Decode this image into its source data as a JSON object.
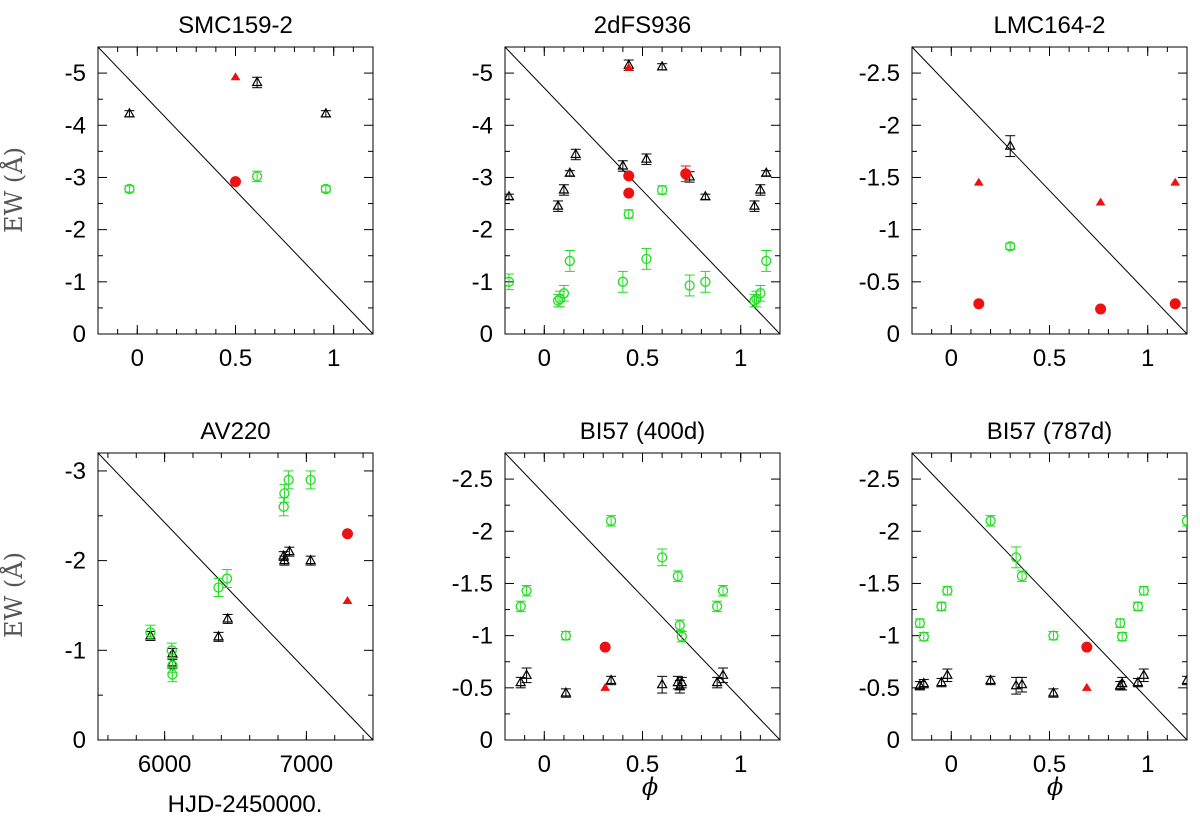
{
  "figure": {
    "ylabel": "EW (Å)",
    "xlabel_left": "HJD-2450000.",
    "xlabel_phase": "ϕ"
  },
  "colors": {
    "frame": "#000000",
    "black_series": "#000000",
    "green_series": "#22dd22",
    "red_series": "#ee1111"
  },
  "chart_data": [
    {
      "type": "scatter",
      "title": "SMC159-2",
      "xlabel": "",
      "ylabel": "EW (Å)",
      "xlim": [
        -0.2,
        1.2
      ],
      "ylim": [
        0,
        -5.5
      ],
      "xticks": [
        0,
        0.5,
        1
      ],
      "xticklabels": [
        "0",
        "0.5",
        "1"
      ],
      "yticks": [
        0,
        -1,
        -2,
        -3,
        -4,
        -5
      ],
      "yticklabels": [
        "0",
        "-1",
        "-2",
        "-3",
        "-4",
        "-5"
      ],
      "line": [
        [
          -0.2,
          -5.5
        ],
        [
          1.2,
          0
        ]
      ],
      "series": [
        {
          "marker": "triangle",
          "color": "#000000",
          "points": [
            [
              -0.04,
              -4.22,
              0.06
            ],
            [
              0.61,
              -4.82,
              0.1
            ],
            [
              0.96,
              -4.22,
              0.06
            ]
          ]
        },
        {
          "marker": "circle",
          "color": "#22dd22",
          "points": [
            [
              -0.04,
              -2.78,
              0.06
            ],
            [
              0.61,
              -3.02,
              0.1
            ],
            [
              0.96,
              -2.78,
              0.06
            ]
          ]
        },
        {
          "marker": "filled-triangle",
          "color": "#ee1111",
          "points": [
            [
              0.5,
              -4.92,
              0
            ]
          ]
        },
        {
          "marker": "filled-circle",
          "color": "#ee1111",
          "points": [
            [
              0.5,
              -2.92,
              0
            ]
          ]
        }
      ]
    },
    {
      "type": "scatter",
      "title": "2dFS936",
      "xlabel": "",
      "ylabel": "",
      "xlim": [
        -0.2,
        1.2
      ],
      "ylim": [
        0,
        -5.5
      ],
      "xticks": [
        0,
        0.5,
        1
      ],
      "xticklabels": [
        "0",
        "0.5",
        "1"
      ],
      "yticks": [
        0,
        -1,
        -2,
        -3,
        -4,
        -5
      ],
      "yticklabels": [
        "0",
        "-1",
        "-2",
        "-3",
        "-4",
        "-5"
      ],
      "line": [
        [
          -0.2,
          -5.5
        ],
        [
          1.2,
          0
        ]
      ],
      "series": [
        {
          "marker": "triangle",
          "color": "#000000",
          "points": [
            [
              -0.18,
              -2.63,
              0.05
            ],
            [
              0.07,
              -2.45,
              0.1
            ],
            [
              0.1,
              -2.76,
              0.1
            ],
            [
              0.13,
              -3.08,
              0.05
            ],
            [
              0.16,
              -3.44,
              0.1
            ],
            [
              0.4,
              -3.22,
              0.1
            ],
            [
              0.43,
              -5.15,
              0.1
            ],
            [
              0.52,
              -3.35,
              0.1
            ],
            [
              0.6,
              -5.12,
              0.06
            ],
            [
              0.74,
              -3.01,
              0.1
            ],
            [
              0.82,
              -2.63,
              0.05
            ],
            [
              1.07,
              -2.45,
              0.1
            ],
            [
              1.1,
              -2.76,
              0.1
            ],
            [
              1.13,
              -3.08,
              0.05
            ]
          ]
        },
        {
          "marker": "circle",
          "color": "#22dd22",
          "points": [
            [
              -0.18,
              -1.0,
              0.15
            ],
            [
              0.07,
              -0.64,
              0.12
            ],
            [
              0.08,
              -0.67,
              0.15
            ],
            [
              0.1,
              -0.78,
              0.15
            ],
            [
              0.13,
              -1.4,
              0.2
            ],
            [
              0.4,
              -1.0,
              0.2
            ],
            [
              0.43,
              -2.3,
              0.08
            ],
            [
              0.52,
              -1.44,
              0.2
            ],
            [
              0.6,
              -2.76,
              0.08
            ],
            [
              0.74,
              -0.93,
              0.2
            ],
            [
              0.82,
              -1.0,
              0.2
            ],
            [
              1.07,
              -0.64,
              0.12
            ],
            [
              1.08,
              -0.67,
              0.15
            ],
            [
              1.1,
              -0.78,
              0.15
            ],
            [
              1.13,
              -1.4,
              0.2
            ]
          ]
        },
        {
          "marker": "filled-triangle",
          "color": "#ee1111",
          "points": [
            [
              0.43,
              -5.1,
              0
            ]
          ]
        },
        {
          "marker": "filled-circle",
          "color": "#ee1111",
          "points": [
            [
              0.43,
              -3.03,
              0
            ],
            [
              0.43,
              -2.7,
              0
            ],
            [
              0.72,
              -3.07,
              0.15
            ]
          ]
        }
      ]
    },
    {
      "type": "scatter",
      "title": "LMC164-2",
      "xlabel": "",
      "ylabel": "",
      "xlim": [
        -0.2,
        1.2
      ],
      "ylim": [
        0,
        -2.75
      ],
      "xticks": [
        0,
        0.5,
        1
      ],
      "xticklabels": [
        "0",
        "0.5",
        "1"
      ],
      "yticks": [
        0,
        -0.5,
        -1,
        -1.5,
        -2,
        -2.5
      ],
      "yticklabels": [
        "0",
        "-0.5",
        "-1",
        "-1.5",
        "-2",
        "-2.5"
      ],
      "line": [
        [
          -0.2,
          -2.75
        ],
        [
          1.2,
          0
        ]
      ],
      "series": [
        {
          "marker": "triangle",
          "color": "#000000",
          "points": [
            [
              0.3,
              -1.8,
              0.1
            ]
          ]
        },
        {
          "marker": "circle",
          "color": "#22dd22",
          "points": [
            [
              0.3,
              -0.84,
              0.03
            ]
          ]
        },
        {
          "marker": "filled-triangle",
          "color": "#ee1111",
          "points": [
            [
              0.14,
              -1.45,
              0
            ],
            [
              0.76,
              -1.26,
              0
            ],
            [
              1.14,
              -1.45,
              0
            ]
          ]
        },
        {
          "marker": "filled-circle",
          "color": "#ee1111",
          "points": [
            [
              0.14,
              -0.29,
              0
            ],
            [
              0.76,
              -0.24,
              0
            ],
            [
              1.14,
              -0.29,
              0
            ]
          ]
        }
      ]
    },
    {
      "type": "scatter",
      "title": "AV220",
      "xlabel": "HJD-2450000.",
      "ylabel": "EW (Å)",
      "xlim": [
        5530,
        7470
      ],
      "ylim": [
        0,
        -3.2
      ],
      "xticks": [
        6000,
        7000
      ],
      "xticklabels": [
        "6000",
        "7000"
      ],
      "yticks": [
        0,
        -1,
        -2,
        -3
      ],
      "yticklabels": [
        "0",
        "-1",
        "-2",
        "-3"
      ],
      "line": [
        [
          5530,
          -3.2
        ],
        [
          7470,
          0
        ]
      ],
      "series": [
        {
          "marker": "triangle",
          "color": "#000000",
          "points": [
            [
              5900,
              -1.16,
              0.05
            ],
            [
              6055,
              -0.96,
              0.06
            ],
            [
              6055,
              -0.86,
              0.06
            ],
            [
              6380,
              -1.15,
              0.05
            ],
            [
              6445,
              -1.35,
              0.05
            ],
            [
              6840,
              -2.05,
              0.05
            ],
            [
              6845,
              -2.0,
              0.05
            ],
            [
              6880,
              -2.1,
              0.05
            ],
            [
              7030,
              -2.0,
              0.05
            ]
          ]
        },
        {
          "marker": "circle",
          "color": "#22dd22",
          "points": [
            [
              5900,
              -1.2,
              0.08
            ],
            [
              6050,
              -1.0,
              0.08
            ],
            [
              6055,
              -0.83,
              0.08
            ],
            [
              6055,
              -0.73,
              0.08
            ],
            [
              6380,
              -1.7,
              0.1
            ],
            [
              6440,
              -1.8,
              0.1
            ],
            [
              6840,
              -2.6,
              0.1
            ],
            [
              6845,
              -2.75,
              0.1
            ],
            [
              6875,
              -2.9,
              0.1
            ],
            [
              7030,
              -2.9,
              0.1
            ]
          ]
        },
        {
          "marker": "filled-triangle",
          "color": "#ee1111",
          "points": [
            [
              7290,
              -1.55,
              0
            ]
          ]
        },
        {
          "marker": "filled-circle",
          "color": "#ee1111",
          "points": [
            [
              7290,
              -2.3,
              0
            ]
          ]
        }
      ]
    },
    {
      "type": "scatter",
      "title": "BI57 (400d)",
      "xlabel": "ϕ",
      "ylabel": "",
      "xlim": [
        -0.2,
        1.2
      ],
      "ylim": [
        0,
        -2.75
      ],
      "xticks": [
        0,
        0.5,
        1
      ],
      "xticklabels": [
        "0",
        "0.5",
        "1"
      ],
      "yticks": [
        0,
        -0.5,
        -1,
        -1.5,
        -2,
        -2.5
      ],
      "yticklabels": [
        "0",
        "-0.5",
        "-1",
        "-1.5",
        "-2",
        "-2.5"
      ],
      "line": [
        [
          -0.2,
          -2.75
        ],
        [
          1.2,
          0
        ]
      ],
      "series": [
        {
          "marker": "triangle",
          "color": "#000000",
          "points": [
            [
              -0.12,
              -0.55,
              0.05
            ],
            [
              -0.09,
              -0.62,
              0.07
            ],
            [
              0.11,
              -0.45,
              0.04
            ],
            [
              0.34,
              -0.57,
              0.04
            ],
            [
              0.6,
              -0.53,
              0.08
            ],
            [
              0.68,
              -0.55,
              0.06
            ],
            [
              0.69,
              -0.51,
              0.06
            ],
            [
              0.7,
              -0.55,
              0.05
            ],
            [
              0.88,
              -0.55,
              0.05
            ],
            [
              0.91,
              -0.62,
              0.07
            ]
          ]
        },
        {
          "marker": "circle",
          "color": "#22dd22",
          "points": [
            [
              -0.12,
              -1.28,
              0.05
            ],
            [
              -0.09,
              -1.43,
              0.05
            ],
            [
              0.11,
              -1.0,
              0.04
            ],
            [
              0.34,
              -2.1,
              0.05
            ],
            [
              0.6,
              -1.75,
              0.08
            ],
            [
              0.68,
              -1.57,
              0.05
            ],
            [
              0.69,
              -1.1,
              0.05
            ],
            [
              0.7,
              -0.99,
              0.05
            ],
            [
              0.88,
              -1.28,
              0.05
            ],
            [
              0.91,
              -1.43,
              0.05
            ]
          ]
        },
        {
          "marker": "filled-triangle",
          "color": "#ee1111",
          "points": [
            [
              0.31,
              -0.5,
              0
            ]
          ]
        },
        {
          "marker": "filled-circle",
          "color": "#ee1111",
          "points": [
            [
              0.31,
              -0.89,
              0
            ]
          ]
        }
      ]
    },
    {
      "type": "scatter",
      "title": "BI57 (787d)",
      "xlabel": "ϕ",
      "ylabel": "",
      "xlim": [
        -0.2,
        1.2
      ],
      "ylim": [
        0,
        -2.75
      ],
      "xticks": [
        0,
        0.5,
        1
      ],
      "xticklabels": [
        "0",
        "0.5",
        "1"
      ],
      "yticks": [
        0,
        -0.5,
        -1,
        -1.5,
        -2,
        -2.5
      ],
      "yticklabels": [
        "0",
        "-0.5",
        "-1",
        "-1.5",
        "-2",
        "-2.5"
      ],
      "line": [
        [
          -0.2,
          -2.75
        ],
        [
          1.2,
          0
        ]
      ],
      "series": [
        {
          "marker": "triangle",
          "color": "#000000",
          "points": [
            [
              -0.16,
              -0.52,
              0.04
            ],
            [
              -0.14,
              -0.54,
              0.04
            ],
            [
              -0.05,
              -0.55,
              0.04
            ],
            [
              -0.02,
              -0.62,
              0.06
            ],
            [
              0.2,
              -0.57,
              0.04
            ],
            [
              0.33,
              -0.52,
              0.08
            ],
            [
              0.36,
              -0.53,
              0.07
            ],
            [
              0.52,
              -0.45,
              0.04
            ],
            [
              0.86,
              -0.52,
              0.04
            ],
            [
              0.87,
              -0.54,
              0.06
            ],
            [
              0.95,
              -0.55,
              0.04
            ],
            [
              0.98,
              -0.62,
              0.06
            ],
            [
              1.2,
              -0.57,
              0.04
            ]
          ]
        },
        {
          "marker": "circle",
          "color": "#22dd22",
          "points": [
            [
              -0.16,
              -1.12,
              0.04
            ],
            [
              -0.14,
              -0.99,
              0.04
            ],
            [
              -0.05,
              -1.28,
              0.04
            ],
            [
              -0.02,
              -1.43,
              0.04
            ],
            [
              0.2,
              -2.1,
              0.05
            ],
            [
              0.33,
              -1.75,
              0.1
            ],
            [
              0.36,
              -1.57,
              0.05
            ],
            [
              0.52,
              -1.0,
              0.04
            ],
            [
              0.86,
              -1.12,
              0.04
            ],
            [
              0.87,
              -0.99,
              0.04
            ],
            [
              0.95,
              -1.28,
              0.04
            ],
            [
              0.98,
              -1.43,
              0.04
            ],
            [
              1.2,
              -2.1,
              0.05
            ]
          ]
        },
        {
          "marker": "filled-triangle",
          "color": "#ee1111",
          "points": [
            [
              0.69,
              -0.5,
              0
            ]
          ]
        },
        {
          "marker": "filled-circle",
          "color": "#ee1111",
          "points": [
            [
              0.69,
              -0.89,
              0
            ]
          ]
        }
      ]
    }
  ]
}
